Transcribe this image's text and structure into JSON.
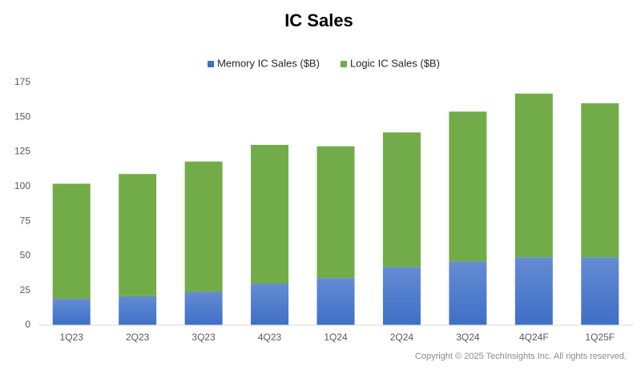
{
  "chart_data": {
    "type": "bar",
    "stacked": true,
    "title": "IC Sales",
    "categories": [
      "1Q23",
      "2Q23",
      "3Q23",
      "4Q23",
      "1Q24",
      "2Q24",
      "3Q24",
      "4Q24F",
      "1Q25F"
    ],
    "series": [
      {
        "name": "Memory IC Sales ($B)",
        "color": "#3e6fc7",
        "values": [
          19,
          21,
          24,
          30,
          34,
          42,
          46,
          49,
          49
        ]
      },
      {
        "name": "Logic IC Sales ($B)",
        "color": "#72ac48",
        "values": [
          83,
          88,
          94,
          100,
          95,
          97,
          108,
          118,
          111
        ]
      }
    ],
    "ylim": [
      0,
      175
    ],
    "yticks": [
      0,
      25,
      50,
      75,
      100,
      125,
      150,
      175
    ],
    "grid": false,
    "legend": "top",
    "note": "Copyright © 2025 TechInsights Inc.  All rights reserved."
  }
}
